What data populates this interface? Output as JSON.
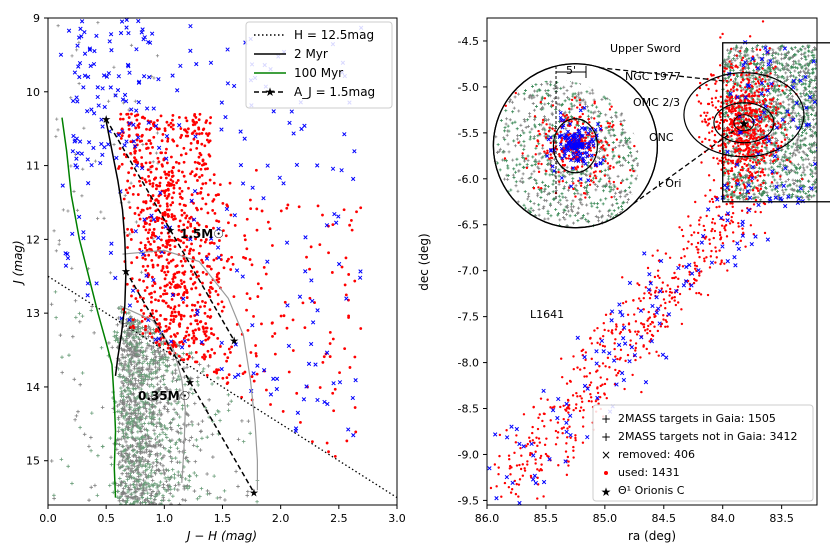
{
  "chart_data": [
    {
      "type": "scatter",
      "panel": "left",
      "xlabel": "J − H (mag)",
      "ylabel": "J (mag)",
      "xlim": [
        0.0,
        3.0
      ],
      "ylim": [
        15.6,
        9.0
      ],
      "xticks": [
        "0.0",
        "0.5",
        "1.0",
        "1.5",
        "2.0",
        "2.5",
        "3.0"
      ],
      "yticks": [
        "9",
        "10",
        "11",
        "12",
        "13",
        "14",
        "15"
      ],
      "legend_position": "top-right",
      "legend": [
        {
          "key": "hline",
          "label": "H = 12.5mag",
          "style": "dotted",
          "color": "#000000"
        },
        {
          "key": "iso2",
          "label": "2 Myr",
          "style": "solid",
          "color": "#000000"
        },
        {
          "key": "iso100",
          "label": "100 Myr",
          "style": "solid",
          "color": "#008000"
        },
        {
          "key": "redvec",
          "label": "A_J = 1.5mag",
          "style": "dashed-star",
          "color": "#000000"
        }
      ],
      "annotations": [
        {
          "text": "1.5M☉",
          "x": 1.12,
          "y": 12.0
        },
        {
          "text": "0.35M☉",
          "x": 0.78,
          "y": 14.2
        }
      ],
      "curves": {
        "h_limit": [
          [
            0.0,
            12.5
          ],
          [
            3.0,
            15.5
          ]
        ],
        "iso_2myr": [
          [
            0.5,
            10.4
          ],
          [
            0.55,
            10.8
          ],
          [
            0.6,
            11.2
          ],
          [
            0.64,
            11.6
          ],
          [
            0.66,
            12.0
          ],
          [
            0.67,
            12.45
          ],
          [
            0.66,
            12.9
          ],
          [
            0.63,
            13.3
          ],
          [
            0.6,
            13.6
          ],
          [
            0.58,
            13.85
          ]
        ],
        "iso_2myr_grey": [
          [
            0.64,
            12.2
          ],
          [
            1.0,
            12.15
          ],
          [
            1.3,
            12.3
          ],
          [
            1.55,
            12.8
          ],
          [
            1.68,
            13.3
          ],
          [
            1.74,
            13.9
          ],
          [
            1.78,
            14.5
          ],
          [
            1.8,
            15.0
          ],
          [
            1.8,
            15.4
          ]
        ],
        "iso_2myr_grey2": [
          [
            0.62,
            12.9
          ],
          [
            0.9,
            13.1
          ],
          [
            1.08,
            13.5
          ],
          [
            1.15,
            13.9
          ],
          [
            1.18,
            14.3
          ],
          [
            1.17,
            14.8
          ],
          [
            1.15,
            15.3
          ]
        ],
        "iso_100myr": [
          [
            0.12,
            10.35
          ],
          [
            0.16,
            10.8
          ],
          [
            0.2,
            11.4
          ],
          [
            0.27,
            12.0
          ],
          [
            0.35,
            12.5
          ],
          [
            0.43,
            13.0
          ],
          [
            0.5,
            13.4
          ],
          [
            0.55,
            13.7
          ],
          [
            0.57,
            14.2
          ],
          [
            0.58,
            14.6
          ],
          [
            0.57,
            15.1
          ],
          [
            0.58,
            15.5
          ]
        ],
        "reddening_vectors": [
          [
            [
              0.5,
              10.37
            ],
            [
              1.05,
              11.87
            ],
            [
              1.6,
              13.37
            ]
          ],
          [
            [
              0.67,
              12.43
            ],
            [
              1.22,
              13.93
            ],
            [
              1.77,
              15.43
            ]
          ]
        ]
      }
    },
    {
      "type": "scatter",
      "panel": "right",
      "xlabel": "ra (deg)",
      "ylabel": "dec (deg)",
      "xlim": [
        86.0,
        83.2
      ],
      "ylim": [
        -9.55,
        -4.25
      ],
      "xticks": [
        "86.0",
        "85.5",
        "85.0",
        "84.5",
        "84.0",
        "83.5"
      ],
      "yticks": [
        "-4.5",
        "-5.0",
        "-5.5",
        "-6.0",
        "-6.5",
        "-7.0",
        "-7.5",
        "-8.0",
        "-8.5",
        "-9.0",
        "-9.5"
      ],
      "legend_position": "bottom-right",
      "legend": [
        {
          "key": "grey",
          "label": "2MASS targets in Gaia: 1505",
          "marker": "+",
          "color": "#808080"
        },
        {
          "key": "green",
          "label": "2MASS targets not in Gaia: 3412",
          "marker": "+",
          "color": "#2e8b57"
        },
        {
          "key": "removed",
          "label": "removed: 406",
          "marker": "x",
          "color": "#0000ff"
        },
        {
          "key": "used",
          "label": "used: 1431",
          "marker": "dot",
          "color": "#ff0000"
        },
        {
          "key": "star",
          "label": "Θ¹ Orionis C",
          "marker": "star",
          "color": "#ffd700"
        }
      ],
      "region_labels": [
        "Upper Sword",
        "NGC 1977",
        "OMC 2/3",
        "ONC",
        "ι Ori",
        "L1641"
      ],
      "inset_scale_label": "5'",
      "regions": {
        "box": {
          "ra": [
            84.0,
            83.0
          ],
          "dec": [
            -4.52,
            -6.25
          ]
        },
        "inset_circle": {
          "ra": 85.25,
          "dec": -5.64,
          "radius_deg": 0.8
        },
        "theta1_ori_c": {
          "ra": 83.82,
          "dec": -5.39
        }
      }
    }
  ]
}
